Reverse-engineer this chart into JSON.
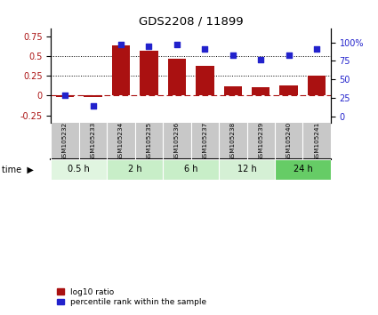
{
  "title": "GDS2208 / 11899",
  "samples": [
    "GSM105232",
    "GSM105233",
    "GSM105234",
    "GSM105235",
    "GSM105236",
    "GSM105237",
    "GSM105238",
    "GSM105239",
    "GSM105240",
    "GSM105241"
  ],
  "log10_ratio": [
    -0.02,
    -0.02,
    0.63,
    0.57,
    0.46,
    0.37,
    0.12,
    0.1,
    0.13,
    0.25
  ],
  "percentile_rank": [
    29,
    14,
    97,
    95,
    97,
    91,
    83,
    77,
    83,
    91
  ],
  "time_groups": [
    {
      "label": "0.5 h",
      "start": 0,
      "end": 2,
      "color": "#e0f5e0"
    },
    {
      "label": "2 h",
      "start": 2,
      "end": 4,
      "color": "#c8eec8"
    },
    {
      "label": "6 h",
      "start": 4,
      "end": 6,
      "color": "#c8eec8"
    },
    {
      "label": "12 h",
      "start": 6,
      "end": 8,
      "color": "#d5f0d5"
    },
    {
      "label": "24 h",
      "start": 8,
      "end": 10,
      "color": "#66cc66"
    }
  ],
  "bar_color": "#aa1111",
  "dot_color": "#2222cc",
  "ylim_left": [
    -0.35,
    0.85
  ],
  "yticks_left": [
    -0.25,
    0.0,
    0.25,
    0.5,
    0.75
  ],
  "ylim_right": [
    -8.75,
    118.75
  ],
  "yticks_right": [
    0,
    25,
    50,
    75,
    100
  ],
  "hline_y": [
    0.25,
    0.5
  ],
  "background_color": "#ffffff",
  "legend_items": [
    {
      "label": "log10 ratio",
      "color": "#aa1111"
    },
    {
      "label": "percentile rank within the sample",
      "color": "#2222cc"
    }
  ]
}
